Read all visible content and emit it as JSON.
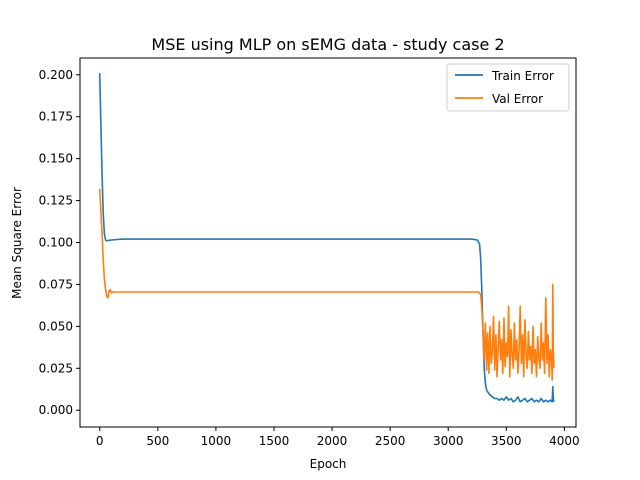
{
  "chart_data": {
    "type": "line",
    "title": "MSE using MLP on sEMG data - study case 2",
    "xlabel": "Epoch",
    "ylabel": "Mean Square Error",
    "xlim": [
      -170,
      4100
    ],
    "ylim": [
      -0.01,
      0.21
    ],
    "x_ticks": [
      0,
      500,
      1000,
      1500,
      2000,
      2500,
      3000,
      3500,
      4000
    ],
    "x_tick_labels": [
      "0",
      "500",
      "1000",
      "1500",
      "2000",
      "2500",
      "3000",
      "3500",
      "4000"
    ],
    "y_ticks": [
      0.0,
      0.025,
      0.05,
      0.075,
      0.1,
      0.125,
      0.15,
      0.175,
      0.2
    ],
    "y_tick_labels": [
      "0.000",
      "0.025",
      "0.050",
      "0.075",
      "0.100",
      "0.125",
      "0.150",
      "0.175",
      "0.200"
    ],
    "grid": false,
    "legend_position": "top-right",
    "series": [
      {
        "name": "Train Error",
        "color": "#1f77b4",
        "x": [
          0,
          10,
          20,
          30,
          40,
          50,
          60,
          70,
          80,
          100,
          150,
          200,
          300,
          500,
          1000,
          1500,
          2000,
          2500,
          3000,
          3200,
          3250,
          3270,
          3280,
          3290,
          3300,
          3310,
          3320,
          3330,
          3340,
          3360,
          3380,
          3400,
          3420,
          3440,
          3460,
          3480,
          3500,
          3520,
          3540,
          3560,
          3580,
          3600,
          3620,
          3640,
          3660,
          3680,
          3700,
          3720,
          3740,
          3760,
          3780,
          3800,
          3820,
          3840,
          3860,
          3880,
          3895,
          3900,
          3905,
          3910
        ],
        "y": [
          0.201,
          0.17,
          0.14,
          0.118,
          0.105,
          0.1015,
          0.101,
          0.1012,
          0.1013,
          0.1015,
          0.1018,
          0.102,
          0.102,
          0.102,
          0.102,
          0.102,
          0.102,
          0.102,
          0.102,
          0.102,
          0.1015,
          0.099,
          0.09,
          0.07,
          0.045,
          0.025,
          0.016,
          0.012,
          0.011,
          0.009,
          0.008,
          0.007,
          0.007,
          0.006,
          0.007,
          0.006,
          0.008,
          0.006,
          0.007,
          0.005,
          0.006,
          0.008,
          0.005,
          0.006,
          0.007,
          0.005,
          0.006,
          0.007,
          0.005,
          0.006,
          0.005,
          0.007,
          0.005,
          0.006,
          0.005,
          0.006,
          0.005,
          0.014,
          0.007,
          0.005
        ]
      },
      {
        "name": "Val Error",
        "color": "#ff7f0e",
        "x": [
          0,
          10,
          20,
          30,
          40,
          50,
          60,
          70,
          80,
          90,
          100,
          120,
          150,
          200,
          300,
          500,
          1000,
          1500,
          2000,
          2500,
          3000,
          3200,
          3260,
          3280,
          3290,
          3300,
          3310,
          3320,
          3330,
          3340,
          3350,
          3360,
          3370,
          3380,
          3390,
          3400,
          3410,
          3420,
          3430,
          3440,
          3450,
          3460,
          3470,
          3480,
          3490,
          3500,
          3510,
          3520,
          3530,
          3540,
          3550,
          3560,
          3570,
          3580,
          3590,
          3600,
          3610,
          3620,
          3630,
          3640,
          3650,
          3660,
          3670,
          3680,
          3690,
          3700,
          3710,
          3720,
          3730,
          3740,
          3750,
          3760,
          3770,
          3780,
          3790,
          3800,
          3810,
          3820,
          3830,
          3840,
          3850,
          3860,
          3870,
          3880,
          3890,
          3895,
          3900,
          3905,
          3910
        ],
        "y": [
          0.132,
          0.118,
          0.105,
          0.09,
          0.078,
          0.072,
          0.068,
          0.067,
          0.071,
          0.072,
          0.07,
          0.0705,
          0.0705,
          0.0705,
          0.0705,
          0.0705,
          0.0705,
          0.0705,
          0.0705,
          0.0705,
          0.0705,
          0.0705,
          0.0705,
          0.069,
          0.06,
          0.045,
          0.03,
          0.052,
          0.024,
          0.046,
          0.022,
          0.05,
          0.028,
          0.035,
          0.056,
          0.024,
          0.045,
          0.02,
          0.038,
          0.053,
          0.03,
          0.042,
          0.022,
          0.055,
          0.026,
          0.04,
          0.032,
          0.062,
          0.02,
          0.048,
          0.034,
          0.025,
          0.052,
          0.03,
          0.042,
          0.022,
          0.036,
          0.062,
          0.028,
          0.045,
          0.02,
          0.054,
          0.033,
          0.025,
          0.047,
          0.03,
          0.038,
          0.022,
          0.05,
          0.028,
          0.036,
          0.02,
          0.044,
          0.031,
          0.025,
          0.052,
          0.03,
          0.04,
          0.022,
          0.067,
          0.028,
          0.045,
          0.02,
          0.036,
          0.03,
          0.018,
          0.075,
          0.035,
          0.025
        ]
      }
    ]
  }
}
